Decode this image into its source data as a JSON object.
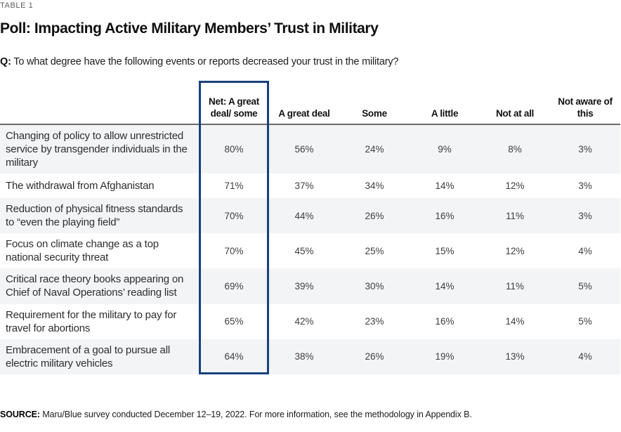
{
  "page": {
    "eyebrow": "TABLE 1",
    "title": "Poll: Impacting Active Military Members’ Trust in Military",
    "question_prefix": "Q:",
    "question_text": "To what degree have the following events or reports decreased your trust in the military?",
    "source_prefix": "SOURCE:",
    "source_text": "Maru/Blue survey conducted December 12–19, 2022. For more information, see the methodology in Appendix B."
  },
  "table": {
    "highlight_color": "#17417e",
    "stripe_color": "#f3f4f6",
    "headers": [
      "Net: A great deal/ some",
      "A great deal",
      "Some",
      "A little",
      "Not at all",
      "Not aware of this"
    ],
    "rows": [
      {
        "label": "Changing of policy to allow unrestricted service by transgender individuals in the military",
        "values": [
          "80%",
          "56%",
          "24%",
          "9%",
          "8%",
          "3%"
        ]
      },
      {
        "label": "The withdrawal from Afghanistan",
        "values": [
          "71%",
          "37%",
          "34%",
          "14%",
          "12%",
          "3%"
        ]
      },
      {
        "label": "Reduction of physical fitness standards to “even the playing field”",
        "values": [
          "70%",
          "44%",
          "26%",
          "16%",
          "11%",
          "3%"
        ]
      },
      {
        "label": "Focus on climate change as a top national security threat",
        "values": [
          "70%",
          "45%",
          "25%",
          "15%",
          "12%",
          "4%"
        ]
      },
      {
        "label": "Critical race theory books appearing on Chief of Naval Operations’ reading list",
        "values": [
          "69%",
          "39%",
          "30%",
          "14%",
          "11%",
          "5%"
        ]
      },
      {
        "label": "Requirement for the military to pay for travel for abortions",
        "values": [
          "65%",
          "42%",
          "23%",
          "16%",
          "14%",
          "5%"
        ]
      },
      {
        "label": "Embracement of a goal to pursue all electric military vehicles",
        "values": [
          "64%",
          "38%",
          "26%",
          "19%",
          "13%",
          "4%"
        ]
      }
    ]
  }
}
